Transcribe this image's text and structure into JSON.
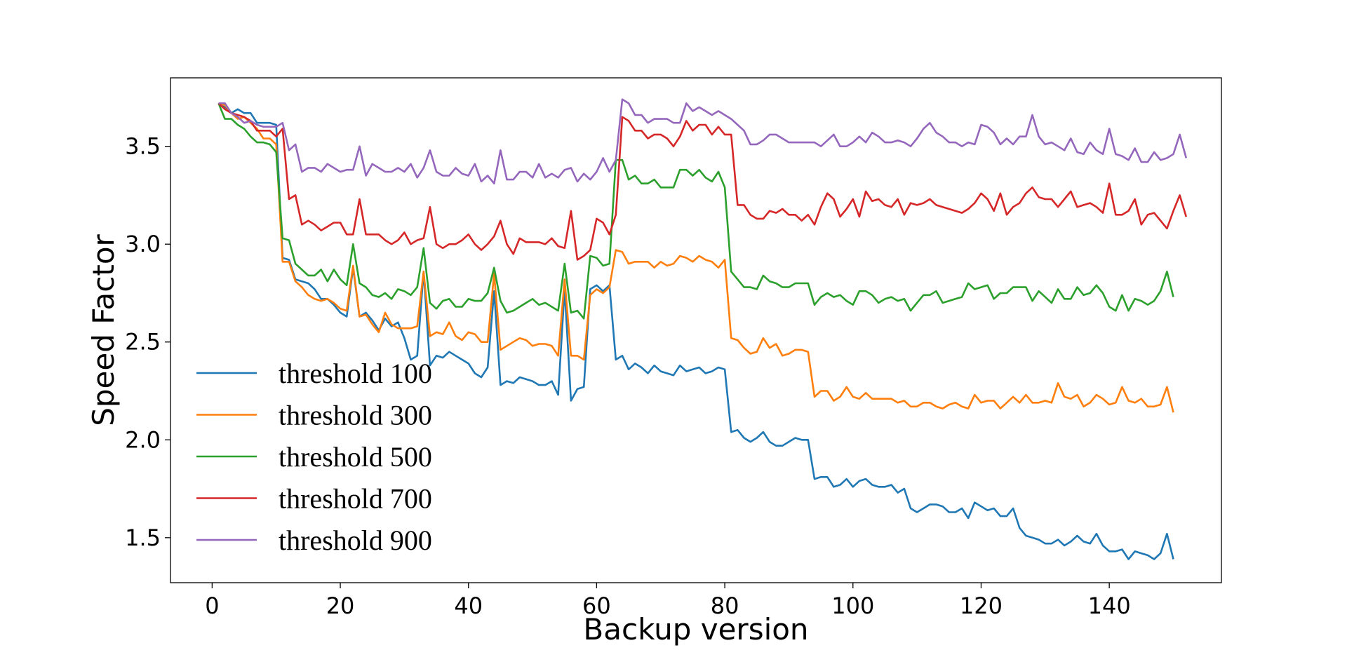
{
  "chart_data": {
    "type": "line",
    "title": "",
    "xlabel": "Backup version",
    "ylabel": "Speed Factor",
    "xlim": [
      -6.5,
      157.5
    ],
    "ylim": [
      1.27,
      3.85
    ],
    "xticks": [
      0,
      20,
      40,
      60,
      80,
      100,
      120,
      140
    ],
    "yticks": [
      1.5,
      2.0,
      2.5,
      3.0,
      3.5
    ],
    "xtick_labels": [
      "0",
      "20",
      "40",
      "60",
      "80",
      "100",
      "120",
      "140"
    ],
    "ytick_labels": [
      "1.5",
      "2.0",
      "2.5",
      "3.0",
      "3.5"
    ],
    "grid": false,
    "legend_position": "lower-left",
    "x_start": 1,
    "series": [
      {
        "name": "threshold 100",
        "color": "#1f77b4",
        "values": [
          3.72,
          3.7,
          3.67,
          3.69,
          3.67,
          3.67,
          3.62,
          3.62,
          3.62,
          3.61,
          2.93,
          2.92,
          2.82,
          2.81,
          2.8,
          2.77,
          2.72,
          2.72,
          2.69,
          2.65,
          2.63,
          2.88,
          2.63,
          2.65,
          2.61,
          2.56,
          2.62,
          2.58,
          2.6,
          2.52,
          2.41,
          2.43,
          2.86,
          2.38,
          2.43,
          2.42,
          2.45,
          2.43,
          2.41,
          2.39,
          2.34,
          2.32,
          2.37,
          2.76,
          2.28,
          2.3,
          2.29,
          2.32,
          2.31,
          2.3,
          2.28,
          2.28,
          2.3,
          2.23,
          2.77,
          2.2,
          2.26,
          2.27,
          2.77,
          2.79,
          2.76,
          2.79,
          2.41,
          2.43,
          2.36,
          2.39,
          2.37,
          2.34,
          2.38,
          2.35,
          2.34,
          2.33,
          2.38,
          2.35,
          2.36,
          2.37,
          2.34,
          2.35,
          2.37,
          2.36,
          2.04,
          2.05,
          2.01,
          1.99,
          2.01,
          2.04,
          1.99,
          1.97,
          1.97,
          1.99,
          2.01,
          2.0,
          2.0,
          1.8,
          1.81,
          1.81,
          1.76,
          1.77,
          1.8,
          1.76,
          1.79,
          1.8,
          1.77,
          1.76,
          1.76,
          1.77,
          1.73,
          1.75,
          1.65,
          1.63,
          1.65,
          1.67,
          1.67,
          1.66,
          1.63,
          1.63,
          1.65,
          1.6,
          1.68,
          1.66,
          1.64,
          1.65,
          1.61,
          1.61,
          1.65,
          1.55,
          1.51,
          1.5,
          1.49,
          1.47,
          1.47,
          1.49,
          1.46,
          1.48,
          1.51,
          1.48,
          1.47,
          1.52,
          1.46,
          1.43,
          1.43,
          1.44,
          1.39,
          1.43,
          1.42,
          1.41,
          1.39,
          1.42,
          1.52,
          1.39
        ]
      },
      {
        "name": "threshold 300",
        "color": "#ff7f0e",
        "values": [
          3.72,
          3.71,
          3.67,
          3.64,
          3.65,
          3.62,
          3.59,
          3.54,
          3.54,
          3.51,
          2.91,
          2.91,
          2.81,
          2.78,
          2.74,
          2.72,
          2.71,
          2.72,
          2.7,
          2.67,
          2.66,
          2.89,
          2.63,
          2.64,
          2.59,
          2.55,
          2.65,
          2.59,
          2.57,
          2.57,
          2.57,
          2.58,
          2.86,
          2.53,
          2.55,
          2.54,
          2.6,
          2.53,
          2.51,
          2.55,
          2.54,
          2.5,
          2.5,
          2.85,
          2.46,
          2.48,
          2.5,
          2.52,
          2.51,
          2.48,
          2.49,
          2.49,
          2.48,
          2.43,
          2.82,
          2.43,
          2.43,
          2.41,
          2.74,
          2.77,
          2.75,
          2.78,
          2.97,
          2.96,
          2.9,
          2.91,
          2.91,
          2.91,
          2.88,
          2.91,
          2.89,
          2.9,
          2.94,
          2.93,
          2.91,
          2.94,
          2.92,
          2.91,
          2.88,
          2.92,
          2.52,
          2.51,
          2.47,
          2.44,
          2.45,
          2.52,
          2.47,
          2.49,
          2.43,
          2.44,
          2.46,
          2.46,
          2.45,
          2.22,
          2.25,
          2.25,
          2.2,
          2.22,
          2.27,
          2.22,
          2.21,
          2.24,
          2.21,
          2.21,
          2.21,
          2.21,
          2.19,
          2.2,
          2.17,
          2.17,
          2.19,
          2.19,
          2.17,
          2.16,
          2.18,
          2.19,
          2.17,
          2.16,
          2.23,
          2.19,
          2.2,
          2.2,
          2.16,
          2.19,
          2.22,
          2.19,
          2.23,
          2.19,
          2.19,
          2.2,
          2.19,
          2.29,
          2.22,
          2.21,
          2.23,
          2.17,
          2.19,
          2.23,
          2.21,
          2.18,
          2.19,
          2.27,
          2.2,
          2.19,
          2.21,
          2.17,
          2.17,
          2.18,
          2.27,
          2.14
        ]
      },
      {
        "name": "threshold 500",
        "color": "#2ca02c",
        "values": [
          3.72,
          3.64,
          3.64,
          3.61,
          3.59,
          3.55,
          3.52,
          3.52,
          3.51,
          3.47,
          3.03,
          3.02,
          2.9,
          2.87,
          2.84,
          2.84,
          2.87,
          2.81,
          2.87,
          2.82,
          2.79,
          3.0,
          2.8,
          2.78,
          2.74,
          2.73,
          2.75,
          2.72,
          2.77,
          2.76,
          2.74,
          2.78,
          2.98,
          2.7,
          2.67,
          2.71,
          2.72,
          2.68,
          2.68,
          2.72,
          2.71,
          2.71,
          2.75,
          2.88,
          2.71,
          2.65,
          2.66,
          2.68,
          2.7,
          2.72,
          2.69,
          2.7,
          2.68,
          2.66,
          2.9,
          2.65,
          2.66,
          2.62,
          2.94,
          2.93,
          2.89,
          2.9,
          3.43,
          3.43,
          3.33,
          3.35,
          3.31,
          3.31,
          3.33,
          3.29,
          3.29,
          3.29,
          3.38,
          3.38,
          3.35,
          3.38,
          3.34,
          3.32,
          3.37,
          3.29,
          2.86,
          2.82,
          2.78,
          2.78,
          2.77,
          2.84,
          2.81,
          2.8,
          2.78,
          2.78,
          2.8,
          2.8,
          2.8,
          2.69,
          2.73,
          2.75,
          2.73,
          2.74,
          2.71,
          2.69,
          2.76,
          2.76,
          2.74,
          2.7,
          2.72,
          2.73,
          2.71,
          2.72,
          2.66,
          2.7,
          2.74,
          2.74,
          2.76,
          2.7,
          2.71,
          2.72,
          2.73,
          2.8,
          2.77,
          2.78,
          2.79,
          2.72,
          2.75,
          2.75,
          2.78,
          2.78,
          2.78,
          2.71,
          2.76,
          2.73,
          2.7,
          2.77,
          2.72,
          2.72,
          2.78,
          2.74,
          2.75,
          2.79,
          2.75,
          2.68,
          2.66,
          2.74,
          2.66,
          2.72,
          2.71,
          2.69,
          2.71,
          2.76,
          2.86,
          2.73
        ]
      },
      {
        "name": "threshold 700",
        "color": "#d62728",
        "values": [
          3.72,
          3.69,
          3.67,
          3.66,
          3.65,
          3.63,
          3.58,
          3.58,
          3.58,
          3.55,
          3.59,
          3.23,
          3.25,
          3.1,
          3.12,
          3.1,
          3.07,
          3.09,
          3.11,
          3.11,
          3.05,
          3.05,
          3.23,
          3.05,
          3.05,
          3.05,
          3.02,
          3.0,
          3.02,
          3.06,
          3.0,
          3.02,
          3.03,
          3.19,
          3.0,
          2.98,
          3.0,
          3.0,
          3.02,
          3.05,
          3.0,
          2.97,
          3.0,
          3.04,
          3.12,
          3.0,
          2.95,
          3.03,
          3.01,
          3.01,
          3.01,
          3.0,
          3.03,
          2.99,
          2.98,
          3.17,
          2.92,
          2.94,
          2.97,
          3.13,
          3.11,
          3.05,
          3.15,
          3.65,
          3.63,
          3.58,
          3.58,
          3.54,
          3.56,
          3.56,
          3.54,
          3.5,
          3.55,
          3.63,
          3.58,
          3.61,
          3.61,
          3.56,
          3.6,
          3.56,
          3.56,
          3.2,
          3.2,
          3.15,
          3.13,
          3.13,
          3.17,
          3.16,
          3.18,
          3.15,
          3.15,
          3.12,
          3.15,
          3.1,
          3.19,
          3.26,
          3.23,
          3.14,
          3.18,
          3.23,
          3.14,
          3.27,
          3.22,
          3.23,
          3.2,
          3.19,
          3.23,
          3.15,
          3.21,
          3.2,
          3.21,
          3.23,
          3.2,
          3.19,
          3.18,
          3.17,
          3.16,
          3.18,
          3.21,
          3.26,
          3.23,
          3.17,
          3.26,
          3.15,
          3.19,
          3.21,
          3.26,
          3.29,
          3.24,
          3.23,
          3.23,
          3.19,
          3.23,
          3.27,
          3.19,
          3.2,
          3.21,
          3.19,
          3.16,
          3.31,
          3.15,
          3.15,
          3.17,
          3.23,
          3.1,
          3.15,
          3.16,
          3.12,
          3.08,
          3.17,
          3.25,
          3.14
        ]
      },
      {
        "name": "threshold 900",
        "color": "#9467bd",
        "values": [
          3.72,
          3.72,
          3.67,
          3.65,
          3.62,
          3.63,
          3.61,
          3.6,
          3.6,
          3.6,
          3.62,
          3.48,
          3.51,
          3.37,
          3.39,
          3.39,
          3.37,
          3.41,
          3.39,
          3.37,
          3.38,
          3.38,
          3.5,
          3.35,
          3.41,
          3.39,
          3.37,
          3.37,
          3.39,
          3.37,
          3.41,
          3.34,
          3.39,
          3.48,
          3.37,
          3.35,
          3.35,
          3.39,
          3.36,
          3.35,
          3.41,
          3.32,
          3.35,
          3.31,
          3.48,
          3.33,
          3.33,
          3.37,
          3.37,
          3.34,
          3.41,
          3.34,
          3.36,
          3.34,
          3.38,
          3.39,
          3.32,
          3.36,
          3.33,
          3.37,
          3.44,
          3.37,
          3.43,
          3.74,
          3.72,
          3.66,
          3.66,
          3.62,
          3.64,
          3.64,
          3.64,
          3.62,
          3.62,
          3.72,
          3.68,
          3.7,
          3.68,
          3.66,
          3.68,
          3.66,
          3.64,
          3.61,
          3.58,
          3.51,
          3.51,
          3.53,
          3.56,
          3.56,
          3.54,
          3.52,
          3.52,
          3.52,
          3.52,
          3.52,
          3.5,
          3.53,
          3.56,
          3.5,
          3.5,
          3.52,
          3.55,
          3.52,
          3.57,
          3.55,
          3.52,
          3.52,
          3.53,
          3.52,
          3.5,
          3.54,
          3.59,
          3.62,
          3.57,
          3.55,
          3.52,
          3.52,
          3.5,
          3.52,
          3.51,
          3.61,
          3.6,
          3.57,
          3.51,
          3.54,
          3.51,
          3.55,
          3.55,
          3.66,
          3.55,
          3.51,
          3.52,
          3.5,
          3.48,
          3.54,
          3.47,
          3.46,
          3.52,
          3.48,
          3.46,
          3.59,
          3.46,
          3.45,
          3.43,
          3.49,
          3.42,
          3.42,
          3.47,
          3.43,
          3.44,
          3.46,
          3.56,
          3.44
        ]
      }
    ]
  }
}
